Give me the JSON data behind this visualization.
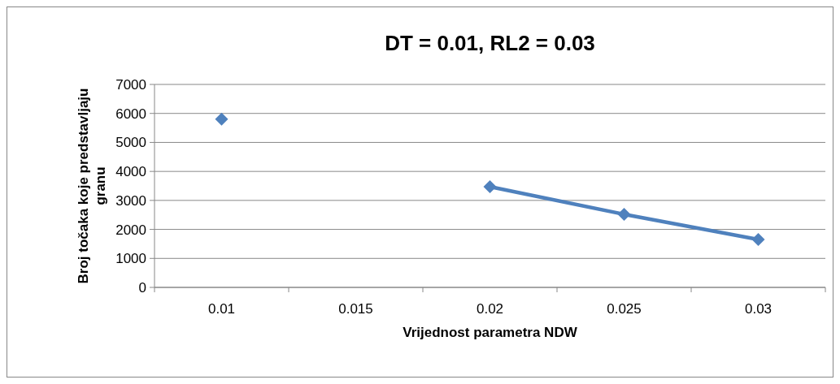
{
  "chart_data": {
    "type": "line",
    "title": "DT = 0.01, RL2 = 0.03",
    "xlabel": "Vrijednost parametra NDW",
    "ylabel": "Broj točaka koje predstavljaju granu",
    "categories": [
      "0.01",
      "0.015",
      "0.02",
      "0.025",
      "0.03"
    ],
    "series": [
      {
        "color": "#4f81bd",
        "values": [
          5800,
          null,
          3470,
          2520,
          1650
        ]
      }
    ],
    "ylim": [
      0,
      7000
    ],
    "yticks": [
      0,
      1000,
      2000,
      3000,
      4000,
      5000,
      6000,
      7000
    ],
    "grid": "y",
    "marker": "diamond",
    "line_style": "solid"
  }
}
